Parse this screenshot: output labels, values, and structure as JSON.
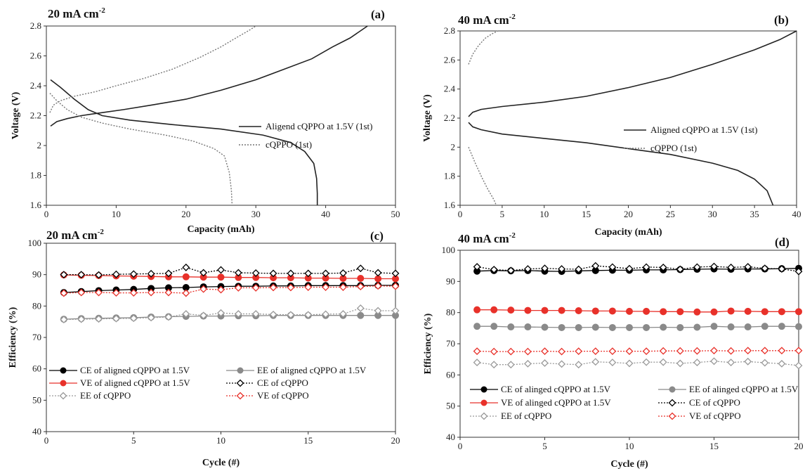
{
  "chart_data": [
    {
      "id": "a",
      "type": "line",
      "title": "20 mA cm",
      "title_sup": "-2",
      "panel_label": "(a)",
      "xlabel": "Capacity (mAh)",
      "ylabel": "Voltage (V)",
      "xlim": [
        0,
        50
      ],
      "ylim": [
        1.6,
        2.8
      ],
      "xticks": [
        0,
        10,
        20,
        30,
        40,
        50
      ],
      "xtick_labels": [
        "0",
        "10",
        "20",
        "30",
        "40",
        "50"
      ],
      "yticks": [
        1.6,
        1.8,
        2.0,
        2.2,
        2.4,
        2.6,
        2.8
      ],
      "ytick_labels": [
        "1.6",
        "1.8",
        "2",
        "2.2",
        "2.4",
        "2.6",
        "2.8"
      ],
      "grid": false,
      "legend_position": "right",
      "series": [
        {
          "name": "Aligend cQPPO at 1.5V (1st)",
          "color": "#222222",
          "dash": "solid",
          "segments": [
            {
              "x": [
                0.6,
                1.5,
                3,
                5,
                8,
                11,
                15,
                20,
                25,
                30,
                34,
                38,
                41,
                43.5,
                46
              ],
              "y": [
                2.13,
                2.16,
                2.18,
                2.2,
                2.22,
                2.24,
                2.27,
                2.31,
                2.37,
                2.44,
                2.51,
                2.58,
                2.66,
                2.72,
                2.8
              ]
            },
            {
              "x": [
                0.6,
                2,
                4,
                6,
                8,
                12,
                18,
                25,
                31,
                35,
                37,
                38.3,
                38.7,
                38.8,
                38.8
              ],
              "y": [
                2.44,
                2.39,
                2.31,
                2.24,
                2.2,
                2.17,
                2.14,
                2.11,
                2.07,
                2.02,
                1.96,
                1.88,
                1.78,
                1.68,
                1.6
              ]
            }
          ]
        },
        {
          "name": "cQPPO (1st)",
          "color": "#777777",
          "dash": "dotted",
          "segments": [
            {
              "x": [
                0.5,
                1,
                2,
                4,
                7,
                10,
                14,
                18,
                22,
                25,
                27.5,
                29,
                30
              ],
              "y": [
                2.22,
                2.27,
                2.3,
                2.33,
                2.36,
                2.4,
                2.45,
                2.51,
                2.59,
                2.66,
                2.73,
                2.77,
                2.8
              ]
            },
            {
              "x": [
                0.5,
                1.5,
                3,
                5,
                8,
                12,
                17,
                21,
                24,
                25.5,
                26.2,
                26.5,
                26.6
              ],
              "y": [
                2.35,
                2.3,
                2.24,
                2.19,
                2.15,
                2.11,
                2.07,
                2.03,
                1.98,
                1.93,
                1.82,
                1.7,
                1.6
              ]
            }
          ]
        }
      ]
    },
    {
      "id": "b",
      "type": "line",
      "title": "40 mA cm",
      "title_sup": "-2",
      "panel_label": "(b)",
      "xlabel": "Capacity (mAh)",
      "ylabel": "Voltage (V)",
      "xlim": [
        0,
        40
      ],
      "ylim": [
        1.6,
        2.8
      ],
      "xticks": [
        0,
        5,
        10,
        15,
        20,
        25,
        30,
        35,
        40
      ],
      "xtick_labels": [
        "0",
        "5",
        "10",
        "15",
        "20",
        "25",
        "30",
        "35",
        "40"
      ],
      "yticks": [
        1.6,
        1.8,
        2.0,
        2.2,
        2.4,
        2.6,
        2.8
      ],
      "ytick_labels": [
        "1.6",
        "1.8",
        "2",
        "2.2",
        "2.4",
        "2.6",
        "2.8"
      ],
      "grid": false,
      "legend_position": "right",
      "series": [
        {
          "name": "Aligned cQPPO at 1.5V (1st)",
          "color": "#222222",
          "dash": "solid",
          "segments": [
            {
              "x": [
                1,
                1.5,
                2.5,
                5,
                10,
                15,
                20,
                25,
                30,
                35,
                38,
                40
              ],
              "y": [
                2.21,
                2.24,
                2.26,
                2.28,
                2.31,
                2.35,
                2.41,
                2.48,
                2.57,
                2.67,
                2.74,
                2.8
              ]
            },
            {
              "x": [
                1,
                1.5,
                2.5,
                5,
                10,
                15,
                20,
                25,
                30,
                33,
                35,
                36.5,
                37.2
              ],
              "y": [
                2.17,
                2.14,
                2.12,
                2.09,
                2.06,
                2.03,
                1.99,
                1.95,
                1.89,
                1.84,
                1.78,
                1.7,
                1.6
              ]
            }
          ]
        },
        {
          "name": "cQPPO (1st)",
          "color": "#777777",
          "dash": "dotted",
          "segments": [
            {
              "x": [
                1,
                1.5,
                2.2,
                3,
                3.8,
                4.5
              ],
              "y": [
                2.57,
                2.64,
                2.7,
                2.75,
                2.78,
                2.8
              ]
            },
            {
              "x": [
                1,
                1.8,
                2.6,
                3.3,
                4.0,
                4.3
              ],
              "y": [
                2.0,
                1.89,
                1.79,
                1.71,
                1.64,
                1.6
              ]
            }
          ]
        }
      ]
    },
    {
      "id": "c",
      "type": "line",
      "title": "20 mA cm",
      "title_sup": "-2",
      "panel_label": "(c)",
      "xlabel": "Cycle (#)",
      "ylabel": "Efficiency (%)",
      "xlim": [
        0,
        20
      ],
      "ylim": [
        40,
        100
      ],
      "xticks": [
        0,
        5,
        10,
        15,
        20
      ],
      "xtick_labels": [
        "0",
        "5",
        "10",
        "15",
        "20"
      ],
      "yticks": [
        40,
        50,
        60,
        70,
        80,
        90,
        100
      ],
      "ytick_labels": [
        "40",
        "50",
        "60",
        "70",
        "80",
        "90",
        "100"
      ],
      "grid": false,
      "legend_position": "lower-left, two columns",
      "x": [
        1,
        2,
        3,
        4,
        5,
        6,
        7,
        8,
        9,
        10,
        11,
        12,
        13,
        14,
        15,
        16,
        17,
        18,
        19,
        20
      ],
      "series": [
        {
          "name": "CE of aligned cQPPO at 1.5V",
          "color": "#000000",
          "marker": "filled",
          "dash": "solid",
          "values": [
            84.3,
            84.6,
            84.9,
            85.1,
            85.3,
            85.6,
            85.8,
            85.9,
            86.1,
            86.2,
            86.3,
            86.3,
            86.4,
            86.4,
            86.5,
            86.5,
            86.5,
            86.5,
            86.6,
            86.6
          ]
        },
        {
          "name": "EE of aligned cQPPO at 1.5V",
          "color": "#8a8a8a",
          "marker": "filled",
          "dash": "solid",
          "values": [
            75.8,
            76.0,
            76.1,
            76.2,
            76.3,
            76.5,
            76.6,
            76.7,
            76.8,
            76.8,
            76.9,
            76.9,
            77.0,
            77.0,
            77.0,
            77.0,
            77.0,
            77.0,
            77.0,
            77.0
          ]
        },
        {
          "name": "VE of aligned cQPPO at 1.5V",
          "color": "#e8312a",
          "marker": "filled",
          "dash": "solid",
          "values": [
            89.9,
            89.8,
            89.7,
            89.6,
            89.5,
            89.4,
            89.3,
            89.3,
            89.2,
            89.2,
            89.1,
            89.1,
            89.0,
            89.0,
            88.9,
            88.9,
            88.8,
            88.8,
            88.7,
            88.7
          ]
        },
        {
          "name": "CE of cQPPO",
          "color": "#000000",
          "marker": "open",
          "dash": "dotted",
          "values": [
            90.0,
            90.0,
            89.9,
            90.1,
            90.2,
            90.3,
            90.4,
            92.3,
            90.6,
            91.5,
            90.6,
            90.5,
            90.4,
            90.4,
            90.4,
            90.4,
            90.5,
            92.0,
            90.6,
            90.4
          ]
        },
        {
          "name": "EE of cQPPO",
          "color": "#999999",
          "marker": "open",
          "dash": "dotted",
          "values": [
            75.7,
            75.8,
            75.9,
            76.0,
            76.1,
            76.3,
            76.5,
            77.5,
            77.0,
            77.8,
            77.5,
            77.5,
            77.3,
            77.2,
            77.2,
            77.4,
            77.5,
            79.3,
            78.5,
            78.5
          ]
        },
        {
          "name": "VE of cQPPO",
          "color": "#e8312a",
          "marker": "open",
          "dash": "dotted",
          "values": [
            84.1,
            84.3,
            84.3,
            84.2,
            84.2,
            84.3,
            84.3,
            84.1,
            85.4,
            85.2,
            85.8,
            85.8,
            85.9,
            85.9,
            86.0,
            86.0,
            86.0,
            86.2,
            86.4,
            86.3
          ]
        }
      ]
    },
    {
      "id": "d",
      "type": "line",
      "title": "40 mA cm",
      "title_sup": "-2",
      "panel_label": "(d)",
      "xlabel": "Cycle (#)",
      "ylabel": "Efficiency (%)",
      "xlim": [
        0,
        20
      ],
      "ylim": [
        40,
        100
      ],
      "xticks": [
        0,
        5,
        10,
        15,
        20
      ],
      "xtick_labels": [
        "0",
        "5",
        "10",
        "15",
        "20"
      ],
      "yticks": [
        40,
        50,
        60,
        70,
        80,
        90,
        100
      ],
      "ytick_labels": [
        "40",
        "50",
        "60",
        "70",
        "80",
        "90",
        "100"
      ],
      "grid": false,
      "legend_position": "lower-left, two columns",
      "x": [
        1,
        2,
        3,
        4,
        5,
        6,
        7,
        8,
        9,
        10,
        11,
        12,
        13,
        14,
        15,
        16,
        17,
        18,
        19,
        20
      ],
      "series": [
        {
          "name": "CE of alinged cQPPO at 1.5V",
          "color": "#000000",
          "marker": "filled",
          "dash": "solid",
          "values": [
            93.3,
            93.5,
            93.4,
            93.5,
            93.3,
            93.2,
            93.4,
            93.5,
            93.6,
            93.6,
            93.7,
            93.7,
            93.8,
            93.9,
            94.0,
            93.9,
            94.0,
            94.0,
            94.1,
            94.2
          ]
        },
        {
          "name": "EE of alinged cQPPO at 1.5V",
          "color": "#8a8a8a",
          "marker": "filled",
          "dash": "solid",
          "values": [
            75.6,
            75.6,
            75.4,
            75.4,
            75.3,
            75.2,
            75.2,
            75.3,
            75.2,
            75.2,
            75.2,
            75.3,
            75.2,
            75.3,
            75.6,
            75.4,
            75.4,
            75.6,
            75.6,
            75.5
          ]
        },
        {
          "name": "VE of alinged cQPPO at 1.5V",
          "color": "#e8312a",
          "marker": "filled",
          "dash": "solid",
          "values": [
            80.9,
            80.9,
            80.8,
            80.7,
            80.7,
            80.7,
            80.6,
            80.5,
            80.5,
            80.4,
            80.4,
            80.3,
            80.3,
            80.2,
            80.2,
            80.5,
            80.4,
            80.3,
            80.3,
            80.3
          ]
        },
        {
          "name": "CE of cQPPO",
          "color": "#000000",
          "marker": "open",
          "dash": "dotted",
          "values": [
            94.7,
            93.8,
            93.5,
            94.0,
            94.2,
            94.0,
            93.9,
            95.0,
            94.6,
            94.1,
            94.6,
            94.5,
            93.9,
            94.6,
            94.8,
            94.5,
            94.7,
            94.2,
            94.0,
            93.2
          ]
        },
        {
          "name": "EE of cQPPO",
          "color": "#999999",
          "marker": "open",
          "dash": "dotted",
          "values": [
            64.0,
            63.3,
            63.3,
            63.6,
            63.8,
            63.5,
            63.3,
            64.2,
            64.0,
            63.7,
            64.1,
            64.1,
            63.7,
            64.0,
            64.4,
            64.0,
            64.3,
            63.9,
            63.6,
            63.0
          ]
        },
        {
          "name": "VE of cQPPO",
          "color": "#e8312a",
          "marker": "open",
          "dash": "dotted",
          "values": [
            67.6,
            67.5,
            67.5,
            67.5,
            67.6,
            67.5,
            67.6,
            67.6,
            67.6,
            67.6,
            67.6,
            67.7,
            67.7,
            67.7,
            67.8,
            67.7,
            67.8,
            67.8,
            67.8,
            67.8
          ]
        }
      ]
    }
  ]
}
